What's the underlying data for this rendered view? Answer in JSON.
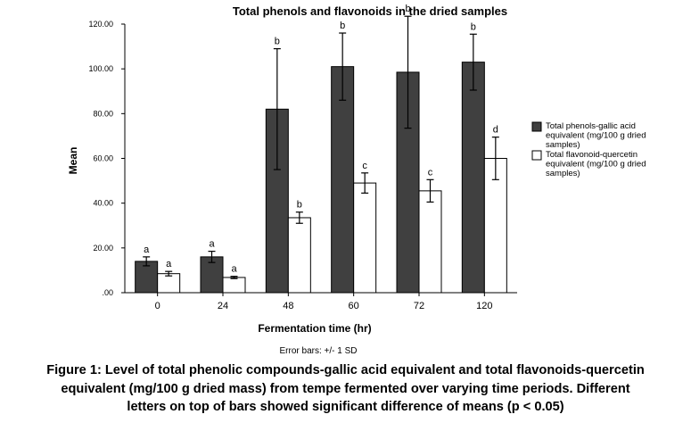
{
  "chart_data": {
    "type": "bar",
    "title": "Total phenols and flavonoids in the dried samples",
    "xlabel": "Fermentation time (hr)",
    "ylabel": "Mean",
    "ylim": [
      0,
      120
    ],
    "yticks": [
      0,
      20,
      40,
      60,
      80,
      100,
      120
    ],
    "yticklabels": [
      ".00",
      "20.00",
      "40.00",
      "60.00",
      "80.00",
      "100.00",
      "120.00"
    ],
    "categories": [
      "0",
      "24",
      "48",
      "60",
      "72",
      "120"
    ],
    "series": [
      {
        "name_lines": [
          "Total phenols-gallic acid",
          "equivalent (mg/100 g dried",
          "samples)"
        ],
        "color": "#404040",
        "values": [
          14,
          16,
          82,
          101,
          98.5,
          103
        ],
        "error": [
          2,
          2.5,
          27,
          15,
          25,
          12.5
        ],
        "sig_letters": [
          "a",
          "a",
          "b",
          "b",
          "b",
          "b"
        ]
      },
      {
        "name_lines": [
          "Total flavonoid-quercetin",
          "equivalent  (mg/100 g dried",
          "samples)"
        ],
        "color": "#ffffff",
        "values": [
          8.5,
          6.8,
          33.5,
          49,
          45.5,
          60
        ],
        "error": [
          1,
          0.5,
          2.5,
          4.5,
          5,
          9.5
        ],
        "sig_letters": [
          "a",
          "a",
          "b",
          "c",
          "c",
          "d"
        ]
      }
    ],
    "legend_position": "right",
    "error_bar_note": "Error bars: +/- 1 SD",
    "grid": false
  },
  "caption_lines": [
    "Figure 1: Level of total phenolic compounds-gallic acid equivalent and total flavonoids-quercetin",
    "equivalent (mg/100 g dried mass) from tempe fermented over varying time periods. Different",
    "letters on top of bars showed significant difference of means (p < 0.05)"
  ]
}
